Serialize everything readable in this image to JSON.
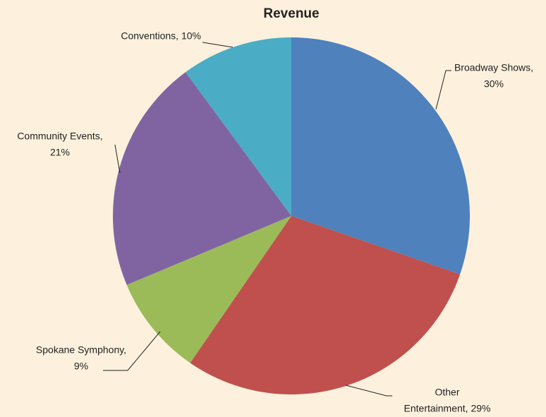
{
  "chart_data": {
    "type": "pie",
    "title": "Revenue",
    "values": [
      30,
      29,
      9,
      21,
      10
    ],
    "value_labels": [
      [
        "Broadway Shows,",
        "30%"
      ],
      [
        "Other",
        "Entertainment, 29%"
      ],
      [
        "Spokane Symphony,",
        "9%"
      ],
      [
        "Community Events,",
        "21%"
      ],
      [
        "Conventions, 10%"
      ]
    ],
    "colors": [
      "#4f81bd",
      "#c0504d",
      "#9bbb59",
      "#8064a2",
      "#4bacc6"
    ]
  }
}
